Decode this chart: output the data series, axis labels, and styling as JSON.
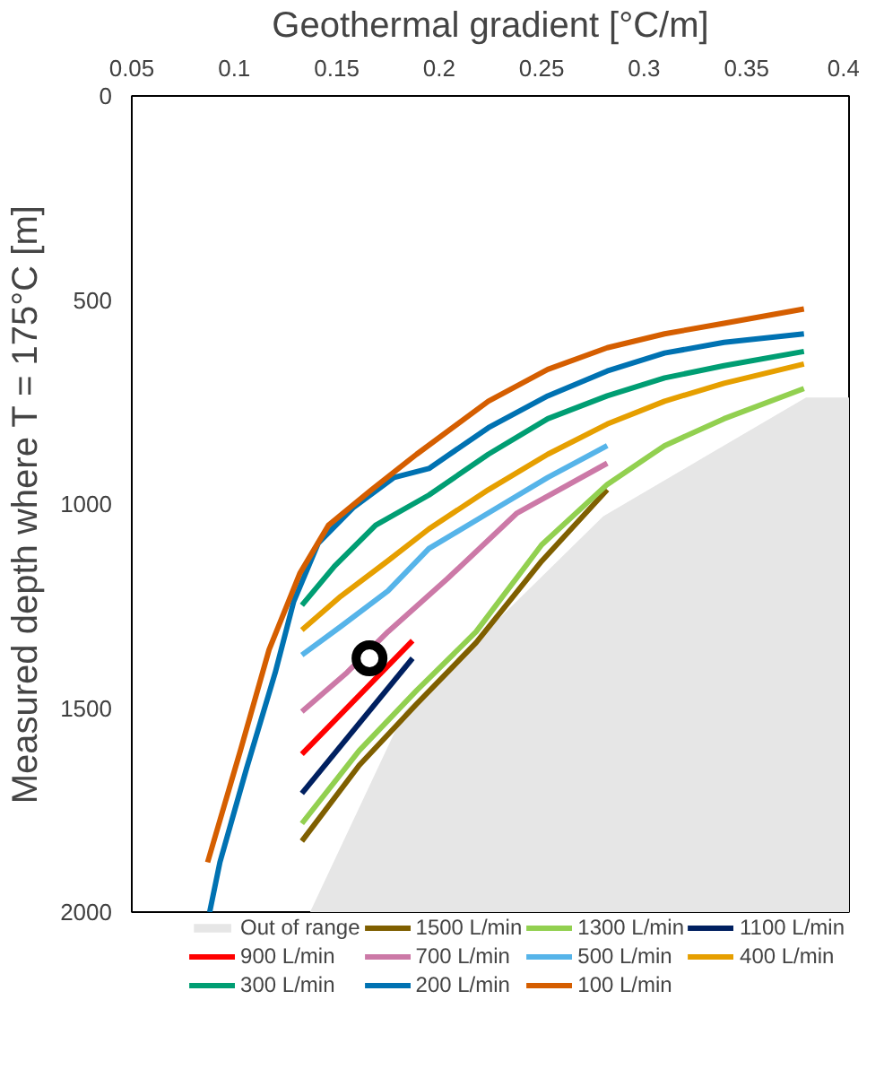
{
  "chart_data": {
    "type": "line",
    "xlabel": "Geothermal gradient [°C/m]",
    "ylabel": "Measured depth where T = 175°C [m]",
    "xlim": [
      0.05,
      0.4
    ],
    "xticks": [
      0.05,
      0.1,
      0.15,
      0.2,
      0.25,
      0.3,
      0.35,
      0.4
    ],
    "ylim": [
      2000,
      0
    ],
    "yticks": [
      0,
      500,
      1000,
      1500,
      2000
    ],
    "grid": false,
    "legend": "bottom",
    "marker": "none",
    "line_style": "solid",
    "series": [
      {
        "name": "Out of range",
        "type": "area",
        "color": "#e6e6e6",
        "x": [
          0.05,
          0.137,
          0.183,
          0.28,
          0.379,
          0.4,
          0.4
        ],
        "values": [
          2000,
          2000,
          1509,
          1030,
          739,
          739,
          2000
        ]
      },
      {
        "name": "1500 L/min",
        "color": "#7f5f00",
        "x": [
          0.133,
          0.161,
          0.189,
          0.218,
          0.25,
          0.282
        ],
        "values": [
          1826,
          1640,
          1490,
          1340,
          1140,
          965
        ]
      },
      {
        "name": "1300 L/min",
        "color": "#92d050",
        "x": [
          0.133,
          0.161,
          0.189,
          0.218,
          0.25,
          0.282,
          0.31,
          0.339,
          0.378
        ],
        "values": [
          1783,
          1604,
          1457,
          1313,
          1100,
          952,
          857,
          791,
          717
        ]
      },
      {
        "name": "1100 L/min",
        "color": "#002060",
        "x": [
          0.133,
          0.187
        ],
        "values": [
          1709,
          1378
        ]
      },
      {
        "name": "900 L/min",
        "color": "#ff0000",
        "x": [
          0.133,
          0.187
        ],
        "values": [
          1613,
          1335
        ]
      },
      {
        "name": "700 L/min",
        "color": "#cc79a7",
        "x": [
          0.133,
          0.155,
          0.175,
          0.204,
          0.238,
          0.282
        ],
        "values": [
          1509,
          1413,
          1313,
          1183,
          1022,
          900
        ]
      },
      {
        "name": "500 L/min",
        "color": "#56b4e9",
        "x": [
          0.133,
          0.152,
          0.175,
          0.195,
          0.224,
          0.253,
          0.282
        ],
        "values": [
          1370,
          1300,
          1213,
          1109,
          1022,
          935,
          857
        ]
      },
      {
        "name": "400 L/min",
        "color": "#e69f00",
        "x": [
          0.133,
          0.152,
          0.175,
          0.195,
          0.224,
          0.253,
          0.282,
          0.31,
          0.339,
          0.378
        ],
        "values": [
          1309,
          1226,
          1139,
          1061,
          965,
          878,
          804,
          748,
          704,
          657
        ]
      },
      {
        "name": "300 L/min",
        "color": "#009e73",
        "x": [
          0.133,
          0.149,
          0.169,
          0.195,
          0.224,
          0.253,
          0.282,
          0.31,
          0.339,
          0.378
        ],
        "values": [
          1248,
          1152,
          1052,
          978,
          878,
          791,
          735,
          691,
          661,
          626
        ]
      },
      {
        "name": "200 L/min",
        "color": "#0072b2",
        "x": [
          0.088,
          0.093,
          0.106,
          0.12,
          0.129,
          0.141,
          0.158,
          0.178,
          0.195,
          0.224,
          0.253,
          0.282,
          0.31,
          0.339,
          0.378
        ],
        "values": [
          2000,
          1878,
          1648,
          1413,
          1239,
          1096,
          1009,
          935,
          913,
          813,
          735,
          674,
          630,
          604,
          583
        ]
      },
      {
        "name": "100 L/min",
        "color": "#d55e00",
        "x": [
          0.087,
          0.103,
          0.117,
          0.132,
          0.146,
          0.167,
          0.189,
          0.224,
          0.253,
          0.282,
          0.31,
          0.339,
          0.378
        ],
        "values": [
          1878,
          1604,
          1357,
          1170,
          1052,
          965,
          878,
          748,
          670,
          617,
          583,
          557,
          522
        ]
      },
      {
        "type": "scatter",
        "marker": "circle",
        "color": "#000000",
        "x": [
          0.166
        ],
        "values": [
          1378
        ]
      }
    ]
  }
}
